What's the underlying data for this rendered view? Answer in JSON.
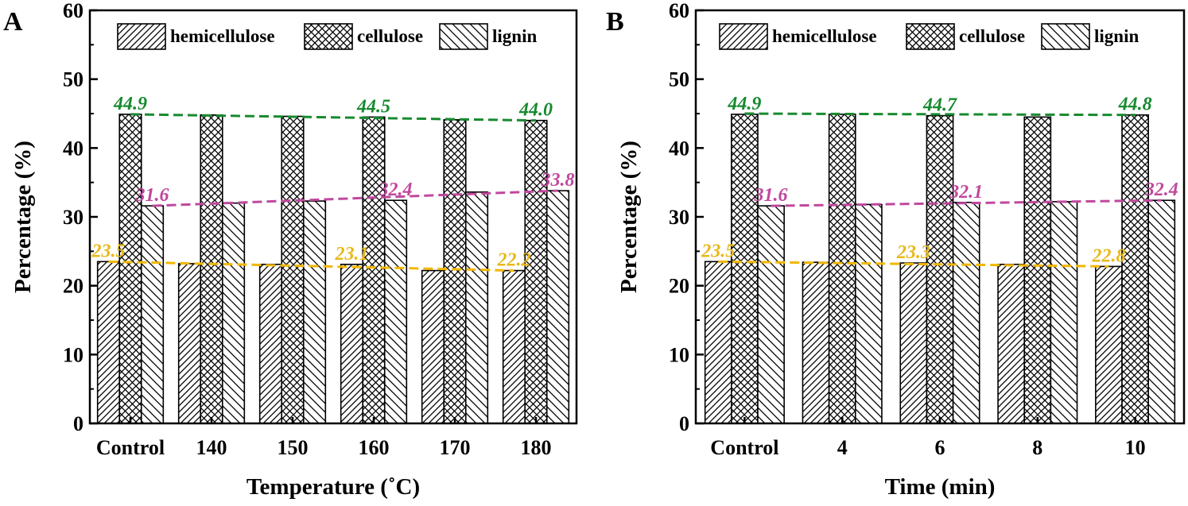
{
  "chart_data": [
    {
      "type": "bar",
      "panel_label": "A",
      "xlabel": "Temperature (˚C)",
      "ylabel": "Percentage (%)",
      "ylim": [
        0,
        60
      ],
      "yticks": [
        "0",
        "10",
        "20",
        "30",
        "40",
        "50",
        "60"
      ],
      "categories": [
        "Control",
        "140",
        "150",
        "160",
        "170",
        "180"
      ],
      "legend_position": "top",
      "series": [
        {
          "name": "hemicellulose",
          "pattern": "hatch-hemi",
          "values": [
            23.5,
            23.2,
            23.1,
            23.1,
            22.2,
            22.2
          ]
        },
        {
          "name": "cellulose",
          "pattern": "hatch-cell",
          "values": [
            44.9,
            44.8,
            44.6,
            44.5,
            44.1,
            44.0
          ]
        },
        {
          "name": "lignin",
          "pattern": "hatch-lig",
          "values": [
            31.6,
            32.0,
            32.3,
            32.4,
            33.6,
            33.8
          ]
        }
      ],
      "trend_lines": [
        {
          "series": "hemicellulose",
          "color": "#f2b705",
          "from": 23.5,
          "to": 22.2
        },
        {
          "series": "cellulose",
          "color": "#178a2f",
          "from": 44.9,
          "to": 44.0
        },
        {
          "series": "lignin",
          "color": "#c0489e",
          "from": 31.6,
          "to": 33.8
        }
      ],
      "annotations": [
        {
          "text": "44.9",
          "category": "Control",
          "value": 44.9,
          "color": "#178a2f"
        },
        {
          "text": "44.5",
          "category": "160",
          "value": 44.5,
          "color": "#178a2f"
        },
        {
          "text": "44.0",
          "category": "180",
          "value": 44.0,
          "color": "#178a2f"
        },
        {
          "text": "31.6",
          "category": "Control",
          "value": 31.6,
          "color": "#c0489e"
        },
        {
          "text": "32.4",
          "category": "160",
          "value": 32.4,
          "color": "#c0489e"
        },
        {
          "text": "33.8",
          "category": "180",
          "value": 33.8,
          "color": "#c0489e"
        },
        {
          "text": "23.5",
          "category": "Control",
          "value": 23.5,
          "color": "#e8b818"
        },
        {
          "text": "23.1",
          "category": "160",
          "value": 23.1,
          "color": "#e8b818"
        },
        {
          "text": "22.2",
          "category": "180",
          "value": 22.2,
          "color": "#e8b818"
        }
      ]
    },
    {
      "type": "bar",
      "panel_label": "B",
      "xlabel": "Time (min)",
      "ylabel": "Percentage (%)",
      "ylim": [
        0,
        60
      ],
      "yticks": [
        "0",
        "10",
        "20",
        "30",
        "40",
        "50",
        "60"
      ],
      "categories": [
        "Control",
        "4",
        "6",
        "8",
        "10"
      ],
      "legend_position": "top",
      "series": [
        {
          "name": "hemicellulose",
          "pattern": "hatch-hemi",
          "values": [
            23.5,
            23.4,
            23.3,
            23.1,
            22.8
          ]
        },
        {
          "name": "cellulose",
          "pattern": "hatch-cell",
          "values": [
            44.9,
            44.9,
            44.7,
            44.5,
            44.8
          ]
        },
        {
          "name": "lignin",
          "pattern": "hatch-lig",
          "values": [
            31.6,
            31.8,
            32.1,
            32.2,
            32.4
          ]
        }
      ],
      "trend_lines": [
        {
          "series": "hemicellulose",
          "color": "#f2b705",
          "from": 23.5,
          "to": 22.8
        },
        {
          "series": "cellulose",
          "color": "#178a2f",
          "from": 45.0,
          "to": 44.8
        },
        {
          "series": "lignin",
          "color": "#c0489e",
          "from": 31.6,
          "to": 32.4
        }
      ],
      "annotations": [
        {
          "text": "44.9",
          "category": "Control",
          "value": 44.9,
          "color": "#178a2f"
        },
        {
          "text": "44.7",
          "category": "6",
          "value": 44.7,
          "color": "#178a2f"
        },
        {
          "text": "44.8",
          "category": "10",
          "value": 44.8,
          "color": "#178a2f"
        },
        {
          "text": "31.6",
          "category": "Control",
          "value": 31.6,
          "color": "#c0489e"
        },
        {
          "text": "32.1",
          "category": "6",
          "value": 32.1,
          "color": "#c0489e"
        },
        {
          "text": "32.4",
          "category": "10",
          "value": 32.4,
          "color": "#c0489e"
        },
        {
          "text": "23.5",
          "category": "Control",
          "value": 23.5,
          "color": "#e8b818"
        },
        {
          "text": "23.3",
          "category": "6",
          "value": 23.3,
          "color": "#e8b818"
        },
        {
          "text": "22.8",
          "category": "10",
          "value": 22.8,
          "color": "#e8b818"
        }
      ]
    }
  ]
}
